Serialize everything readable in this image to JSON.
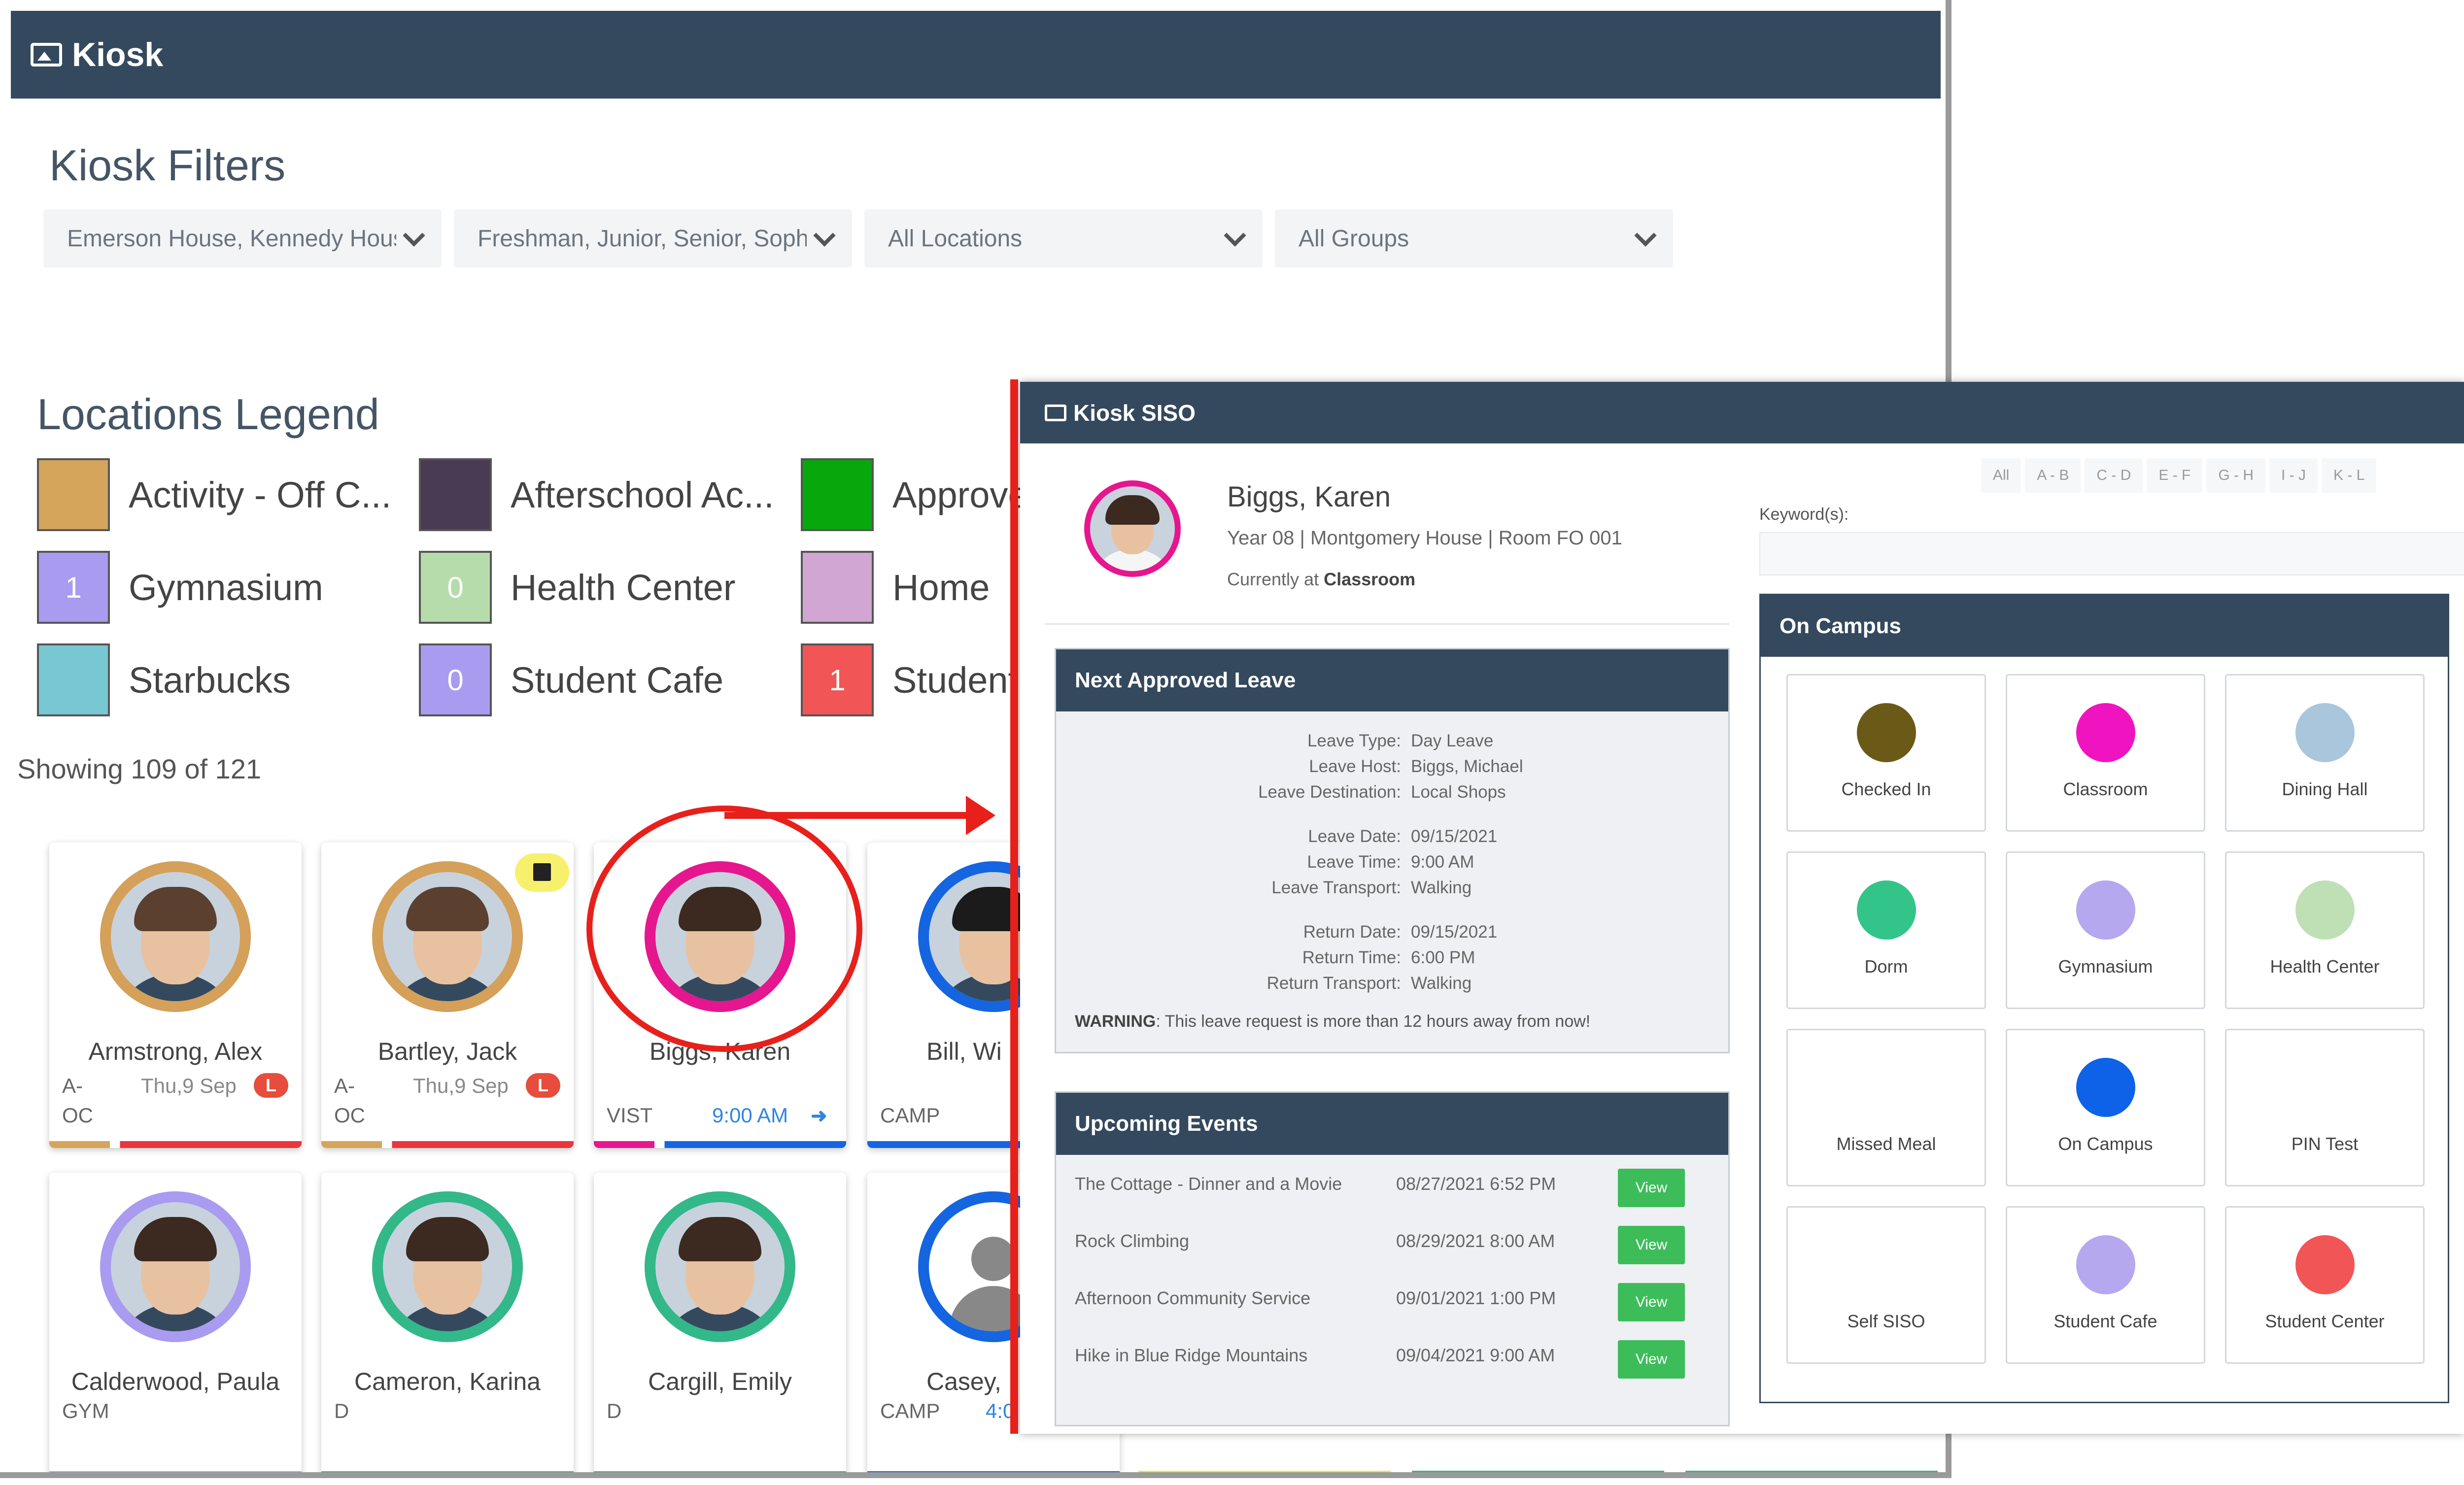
{
  "kiosk": {
    "title": "Kiosk",
    "filters_title": "Kiosk Filters",
    "filters": [
      {
        "value": "Emerson House, Kennedy House"
      },
      {
        "value": "Freshman, Junior, Senior, Sophomore"
      },
      {
        "value": "All Locations"
      },
      {
        "value": "All Groups"
      }
    ],
    "legend_title": "Locations Legend",
    "legend": [
      {
        "label": "Activity - Off C...",
        "count": "",
        "color": "#d4a55a"
      },
      {
        "label": "Afterschool Ac...",
        "count": "",
        "color": "#4a3b55"
      },
      {
        "label": "Approve",
        "count": "",
        "color": "#06a80c"
      },
      {
        "label": "Gymnasium",
        "count": "1",
        "color": "#a99bf0"
      },
      {
        "label": "Health Center",
        "count": "0",
        "color": "#b7dcab"
      },
      {
        "label": "Home",
        "count": "",
        "color": "#d2a6d2"
      },
      {
        "label": "Starbucks",
        "count": "",
        "color": "#77c8d2"
      },
      {
        "label": "Student Cafe",
        "count": "0",
        "color": "#a99bf0"
      },
      {
        "label": "Student",
        "count": "1",
        "color": "#f15555"
      }
    ],
    "showing": "Showing 109 of 121",
    "students": [
      {
        "name": "Armstrong, Alex",
        "line1": "A-",
        "line2": "OC",
        "date": "Thu,9 Sep",
        "badge": "L",
        "time": "",
        "ring": "#d4a55a"
      },
      {
        "name": "Bartley, Jack",
        "line1": "A-",
        "line2": "OC",
        "date": "Thu,9 Sep",
        "badge": "L",
        "time": "",
        "ring": "#d4a55a"
      },
      {
        "name": "Biggs, Karen",
        "line1": "",
        "line2": "VIST",
        "date": "",
        "badge": "",
        "time": "9:00 AM",
        "ring": "#e6168f"
      },
      {
        "name": "Bill, Wi",
        "line1": "",
        "line2": "CAMP",
        "date": "",
        "badge": "",
        "time": "",
        "ring": "#1565e0"
      },
      {
        "name": "Calderwood, Paula",
        "line1": "",
        "line2": "GYM",
        "date": "",
        "badge": "",
        "time": "",
        "ring": "#a99bf0"
      },
      {
        "name": "Cameron, Karina",
        "line1": "",
        "line2": "D",
        "date": "",
        "badge": "",
        "time": "",
        "ring": "#33b889"
      },
      {
        "name": "Cargill, Emily",
        "line1": "",
        "line2": "D",
        "date": "",
        "badge": "",
        "time": "",
        "ring": "#33b889"
      },
      {
        "name": "Casey, I",
        "line1": "",
        "line2": "CAMP",
        "date": "",
        "badge": "",
        "time": "4:0",
        "ring": "#1565e0"
      }
    ]
  },
  "siso": {
    "title": "Kiosk SISO",
    "student": {
      "name": "Biggs, Karen",
      "detail": "Year 08 | Montgomery House | Room FO 001",
      "currently_label": "Currently at",
      "currently_value": "Classroom"
    },
    "leave": {
      "title": "Next Approved Leave",
      "rows": [
        {
          "k": "Leave Type:",
          "v": "Day Leave"
        },
        {
          "k": "Leave Host:",
          "v": "Biggs, Michael"
        },
        {
          "k": "Leave Destination:",
          "v": "Local Shops"
        },
        {
          "k": "Leave Date:",
          "v": "09/15/2021"
        },
        {
          "k": "Leave Time:",
          "v": "9:00 AM"
        },
        {
          "k": "Leave Transport:",
          "v": "Walking"
        },
        {
          "k": "Return Date:",
          "v": "09/15/2021"
        },
        {
          "k": "Return Time:",
          "v": "6:00 PM"
        },
        {
          "k": "Return Transport:",
          "v": "Walking"
        }
      ],
      "warning_label": "WARNING",
      "warning_text": ": This leave request is more than 12 hours away from now!"
    },
    "events": {
      "title": "Upcoming Events",
      "items": [
        {
          "name": "The Cottage - Dinner and a Movie",
          "date": "08/27/2021 6:52 PM",
          "button": "View"
        },
        {
          "name": "Rock Climbing",
          "date": "08/29/2021 8:00 AM",
          "button": "View"
        },
        {
          "name": "Afternoon Community Service",
          "date": "09/01/2021 1:00 PM",
          "button": "View"
        },
        {
          "name": "Hike in Blue Ridge Mountains",
          "date": "09/04/2021 9:00 AM",
          "button": "View"
        }
      ]
    },
    "az_filters": [
      "All",
      "A - B",
      "C - D",
      "E - F",
      "G - H",
      "I - J",
      "K - L"
    ],
    "keyword_label": "Keyword(s):",
    "keyword_value": "",
    "oncampus": {
      "title": "On Campus",
      "tiles": [
        {
          "label": "Checked In",
          "color": "#6b5a17"
        },
        {
          "label": "Classroom",
          "color": "#f014c0"
        },
        {
          "label": "Dining Hall",
          "color": "#a9c6dc"
        },
        {
          "label": "Dorm",
          "color": "#33c48a"
        },
        {
          "label": "Gymnasium",
          "color": "#b5a8ee"
        },
        {
          "label": "Health Center",
          "color": "#bfe0b5"
        },
        {
          "label": "Missed Meal",
          "color": ""
        },
        {
          "label": "On Campus",
          "color": "#0d62e8"
        },
        {
          "label": "PIN Test",
          "color": ""
        },
        {
          "label": "Self SISO",
          "color": ""
        },
        {
          "label": "Student Cafe",
          "color": "#b5a8ee"
        },
        {
          "label": "Student Center",
          "color": "#f25555"
        }
      ]
    }
  }
}
